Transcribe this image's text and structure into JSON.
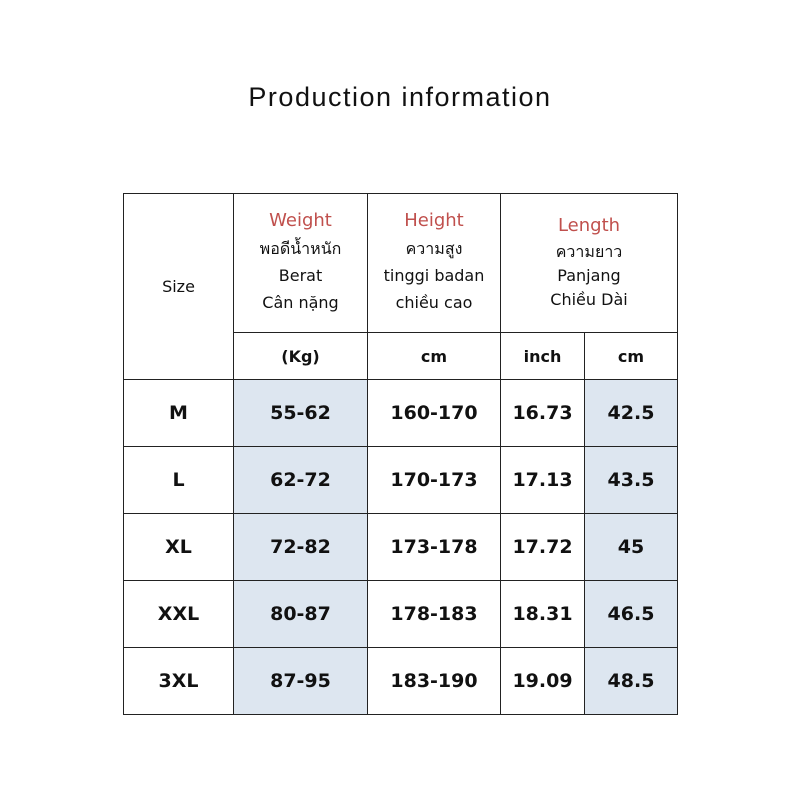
{
  "title": "Production information",
  "table": {
    "header": {
      "size": "Size",
      "weight": {
        "label": "Weight",
        "lines": [
          "พอดีน้ำหนัก",
          "Berat",
          "Cân nặng"
        ]
      },
      "height": {
        "label": "Height",
        "lines": [
          "ความสูง",
          "tinggi badan",
          "chiều cao"
        ]
      },
      "length": {
        "label": "Length",
        "lines": [
          "ความยาว",
          "Panjang",
          "Chiều Dài"
        ]
      }
    },
    "units": [
      "(Kg)",
      "cm",
      "inch",
      "cm"
    ],
    "rows": [
      [
        "M",
        "55-62",
        "160-170",
        "16.73",
        "42.5"
      ],
      [
        "L",
        "62-72",
        "170-173",
        "17.13",
        "43.5"
      ],
      [
        "XL",
        "72-82",
        "173-178",
        "17.72",
        "45"
      ],
      [
        "XXL",
        "80-87",
        "178-183",
        "18.31",
        "46.5"
      ],
      [
        "3XL",
        "87-95",
        "183-190",
        "19.09",
        "48.5"
      ]
    ]
  }
}
